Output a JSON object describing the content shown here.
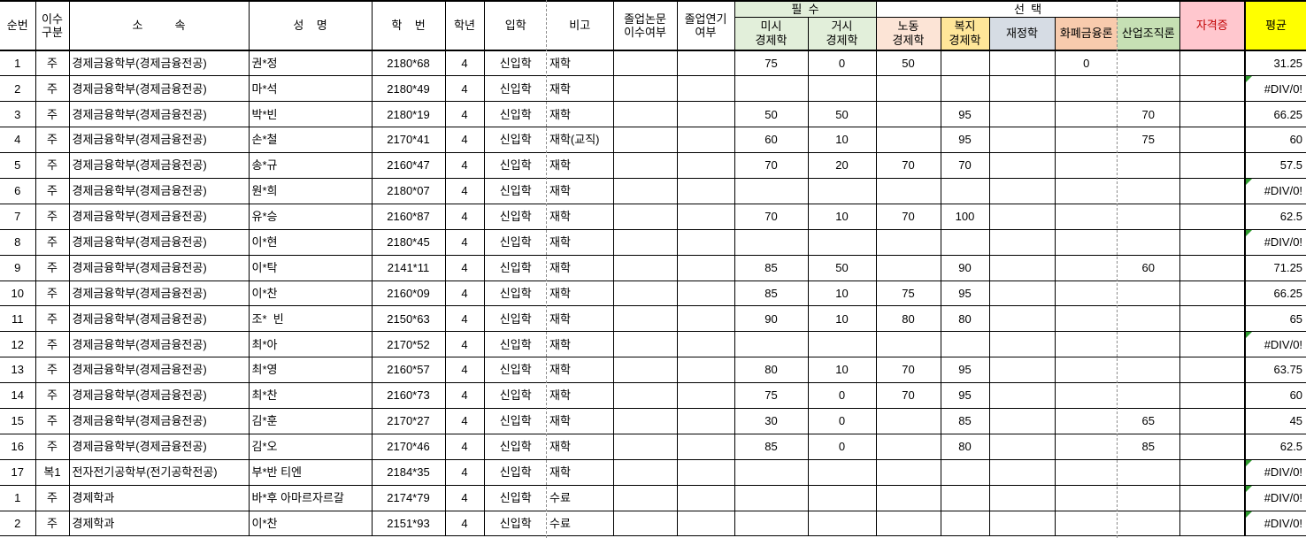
{
  "table": {
    "group_headers": {
      "required": "필  수",
      "elective": "선  택"
    },
    "error_value": "#DIV/0!",
    "columns": [
      {
        "key": "no",
        "label": "순번"
      },
      {
        "key": "type",
        "label": "이수\n구분"
      },
      {
        "key": "dept",
        "label": "소          속"
      },
      {
        "key": "name",
        "label": "성    명"
      },
      {
        "key": "sid",
        "label": "학    번"
      },
      {
        "key": "year",
        "label": "학년"
      },
      {
        "key": "adm",
        "label": "입학"
      },
      {
        "key": "note",
        "label": "비고"
      },
      {
        "key": "thesis",
        "label": "졸업논문\n이수여부"
      },
      {
        "key": "defer",
        "label": "졸업연기\n여부"
      },
      {
        "key": "micro",
        "label": "미시\n경제학"
      },
      {
        "key": "macro",
        "label": "거시\n경제학"
      },
      {
        "key": "labor",
        "label": "노동\n경제학"
      },
      {
        "key": "welfare",
        "label": "복지\n경제학"
      },
      {
        "key": "public",
        "label": "재정학"
      },
      {
        "key": "money",
        "label": "화폐금융론"
      },
      {
        "key": "industry",
        "label": "산업조직론"
      },
      {
        "key": "cert",
        "label": "자격증"
      },
      {
        "key": "avg",
        "label": "평균"
      }
    ],
    "rows": [
      {
        "no": "1",
        "type": "주",
        "dept": "경제금융학부(경제금융전공)",
        "name": "권*정",
        "sid": "2180*68",
        "year": "4",
        "adm": "신입학",
        "note": "재학",
        "thesis": "",
        "defer": "",
        "micro": "75",
        "macro": "0",
        "labor": "50",
        "welfare": "",
        "public": "",
        "money": "0",
        "industry": "",
        "cert": "",
        "avg": "31.25"
      },
      {
        "no": "2",
        "type": "주",
        "dept": "경제금융학부(경제금융전공)",
        "name": "마*석",
        "sid": "2180*49",
        "year": "4",
        "adm": "신입학",
        "note": "재학",
        "thesis": "",
        "defer": "",
        "micro": "",
        "macro": "",
        "labor": "",
        "welfare": "",
        "public": "",
        "money": "",
        "industry": "",
        "cert": "",
        "avg": "#DIV/0!"
      },
      {
        "no": "3",
        "type": "주",
        "dept": "경제금융학부(경제금융전공)",
        "name": "박*빈",
        "sid": "2180*19",
        "year": "4",
        "adm": "신입학",
        "note": "재학",
        "thesis": "",
        "defer": "",
        "micro": "50",
        "macro": "50",
        "labor": "",
        "welfare": "95",
        "public": "",
        "money": "",
        "industry": "70",
        "cert": "",
        "avg": "66.25"
      },
      {
        "no": "4",
        "type": "주",
        "dept": "경제금융학부(경제금융전공)",
        "name": "손*철",
        "sid": "2170*41",
        "year": "4",
        "adm": "신입학",
        "note": "재학(교직)",
        "thesis": "",
        "defer": "",
        "micro": "60",
        "macro": "10",
        "labor": "",
        "welfare": "95",
        "public": "",
        "money": "",
        "industry": "75",
        "cert": "",
        "avg": "60"
      },
      {
        "no": "5",
        "type": "주",
        "dept": "경제금융학부(경제금융전공)",
        "name": "송*규",
        "sid": "2160*47",
        "year": "4",
        "adm": "신입학",
        "note": "재학",
        "thesis": "",
        "defer": "",
        "micro": "70",
        "macro": "20",
        "labor": "70",
        "welfare": "70",
        "public": "",
        "money": "",
        "industry": "",
        "cert": "",
        "avg": "57.5"
      },
      {
        "no": "6",
        "type": "주",
        "dept": "경제금융학부(경제금융전공)",
        "name": "원*희",
        "sid": "2180*07",
        "year": "4",
        "adm": "신입학",
        "note": "재학",
        "thesis": "",
        "defer": "",
        "micro": "",
        "macro": "",
        "labor": "",
        "welfare": "",
        "public": "",
        "money": "",
        "industry": "",
        "cert": "",
        "avg": "#DIV/0!"
      },
      {
        "no": "7",
        "type": "주",
        "dept": "경제금융학부(경제금융전공)",
        "name": "유*승",
        "sid": "2160*87",
        "year": "4",
        "adm": "신입학",
        "note": "재학",
        "thesis": "",
        "defer": "",
        "micro": "70",
        "macro": "10",
        "labor": "70",
        "welfare": "100",
        "public": "",
        "money": "",
        "industry": "",
        "cert": "",
        "avg": "62.5"
      },
      {
        "no": "8",
        "type": "주",
        "dept": "경제금융학부(경제금융전공)",
        "name": "이*현",
        "sid": "2180*45",
        "year": "4",
        "adm": "신입학",
        "note": "재학",
        "thesis": "",
        "defer": "",
        "micro": "",
        "macro": "",
        "labor": "",
        "welfare": "",
        "public": "",
        "money": "",
        "industry": "",
        "cert": "",
        "avg": "#DIV/0!"
      },
      {
        "no": "9",
        "type": "주",
        "dept": "경제금융학부(경제금융전공)",
        "name": "이*탁",
        "sid": "2141*11",
        "year": "4",
        "adm": "신입학",
        "note": "재학",
        "thesis": "",
        "defer": "",
        "micro": "85",
        "macro": "50",
        "labor": "",
        "welfare": "90",
        "public": "",
        "money": "",
        "industry": "60",
        "cert": "",
        "avg": "71.25"
      },
      {
        "no": "10",
        "type": "주",
        "dept": "경제금융학부(경제금융전공)",
        "name": "이*찬",
        "sid": "2160*09",
        "year": "4",
        "adm": "신입학",
        "note": "재학",
        "thesis": "",
        "defer": "",
        "micro": "85",
        "macro": "10",
        "labor": "75",
        "welfare": "95",
        "public": "",
        "money": "",
        "industry": "",
        "cert": "",
        "avg": "66.25"
      },
      {
        "no": "11",
        "type": "주",
        "dept": "경제금융학부(경제금융전공)",
        "name": "조*  빈",
        "sid": "2150*63",
        "year": "4",
        "adm": "신입학",
        "note": "재학",
        "thesis": "",
        "defer": "",
        "micro": "90",
        "macro": "10",
        "labor": "80",
        "welfare": "80",
        "public": "",
        "money": "",
        "industry": "",
        "cert": "",
        "avg": "65"
      },
      {
        "no": "12",
        "type": "주",
        "dept": "경제금융학부(경제금융전공)",
        "name": "최*아",
        "sid": "2170*52",
        "year": "4",
        "adm": "신입학",
        "note": "재학",
        "thesis": "",
        "defer": "",
        "micro": "",
        "macro": "",
        "labor": "",
        "welfare": "",
        "public": "",
        "money": "",
        "industry": "",
        "cert": "",
        "avg": "#DIV/0!"
      },
      {
        "no": "13",
        "type": "주",
        "dept": "경제금융학부(경제금융전공)",
        "name": "최*영",
        "sid": "2160*57",
        "year": "4",
        "adm": "신입학",
        "note": "재학",
        "thesis": "",
        "defer": "",
        "micro": "80",
        "macro": "10",
        "labor": "70",
        "welfare": "95",
        "public": "",
        "money": "",
        "industry": "",
        "cert": "",
        "avg": "63.75"
      },
      {
        "no": "14",
        "type": "주",
        "dept": "경제금융학부(경제금융전공)",
        "name": "최*찬",
        "sid": "2160*73",
        "year": "4",
        "adm": "신입학",
        "note": "재학",
        "thesis": "",
        "defer": "",
        "micro": "75",
        "macro": "0",
        "labor": "70",
        "welfare": "95",
        "public": "",
        "money": "",
        "industry": "",
        "cert": "",
        "avg": "60"
      },
      {
        "no": "15",
        "type": "주",
        "dept": "경제금융학부(경제금융전공)",
        "name": "김*훈",
        "sid": "2170*27",
        "year": "4",
        "adm": "신입학",
        "note": "재학",
        "thesis": "",
        "defer": "",
        "micro": "30",
        "macro": "0",
        "labor": "",
        "welfare": "85",
        "public": "",
        "money": "",
        "industry": "65",
        "cert": "",
        "avg": "45"
      },
      {
        "no": "16",
        "type": "주",
        "dept": "경제금융학부(경제금융전공)",
        "name": "김*오",
        "sid": "2170*46",
        "year": "4",
        "adm": "신입학",
        "note": "재학",
        "thesis": "",
        "defer": "",
        "micro": "85",
        "macro": "0",
        "labor": "",
        "welfare": "80",
        "public": "",
        "money": "",
        "industry": "85",
        "cert": "",
        "avg": "62.5"
      },
      {
        "no": "17",
        "type": "복1",
        "dept": "전자전기공학부(전기공학전공)",
        "name": "부*반 티엔",
        "sid": "2184*35",
        "year": "4",
        "adm": "신입학",
        "note": "재학",
        "thesis": "",
        "defer": "",
        "micro": "",
        "macro": "",
        "labor": "",
        "welfare": "",
        "public": "",
        "money": "",
        "industry": "",
        "cert": "",
        "avg": "#DIV/0!"
      },
      {
        "no": "1",
        "type": "주",
        "dept": "경제학과",
        "name": "바*후 아마르자르갈",
        "sid": "2174*79",
        "year": "4",
        "adm": "신입학",
        "note": "수료",
        "thesis": "",
        "defer": "",
        "micro": "",
        "macro": "",
        "labor": "",
        "welfare": "",
        "public": "",
        "money": "",
        "industry": "",
        "cert": "",
        "avg": "#DIV/0!"
      },
      {
        "no": "2",
        "type": "주",
        "dept": "경제학과",
        "name": "이*찬",
        "sid": "2151*93",
        "year": "4",
        "adm": "신입학",
        "note": "수료",
        "thesis": "",
        "defer": "",
        "micro": "",
        "macro": "",
        "labor": "",
        "welfare": "",
        "public": "",
        "money": "",
        "industry": "",
        "cert": "",
        "avg": "#DIV/0!"
      }
    ]
  },
  "colors": {
    "required_bg": "#E2EFDA",
    "labor_bg": "#FCE4D6",
    "welfare_bg": "#FFE699",
    "public_bg": "#D6DCE4",
    "money_bg": "#F8CBAD",
    "industry_bg": "#C6E0B4",
    "cert_bg": "#FFC7CE",
    "cert_text": "#C00000",
    "avg_bg": "#FFFF00",
    "error_indicator": "#2E9B2E",
    "page_break_line": "#8C8C8C"
  }
}
